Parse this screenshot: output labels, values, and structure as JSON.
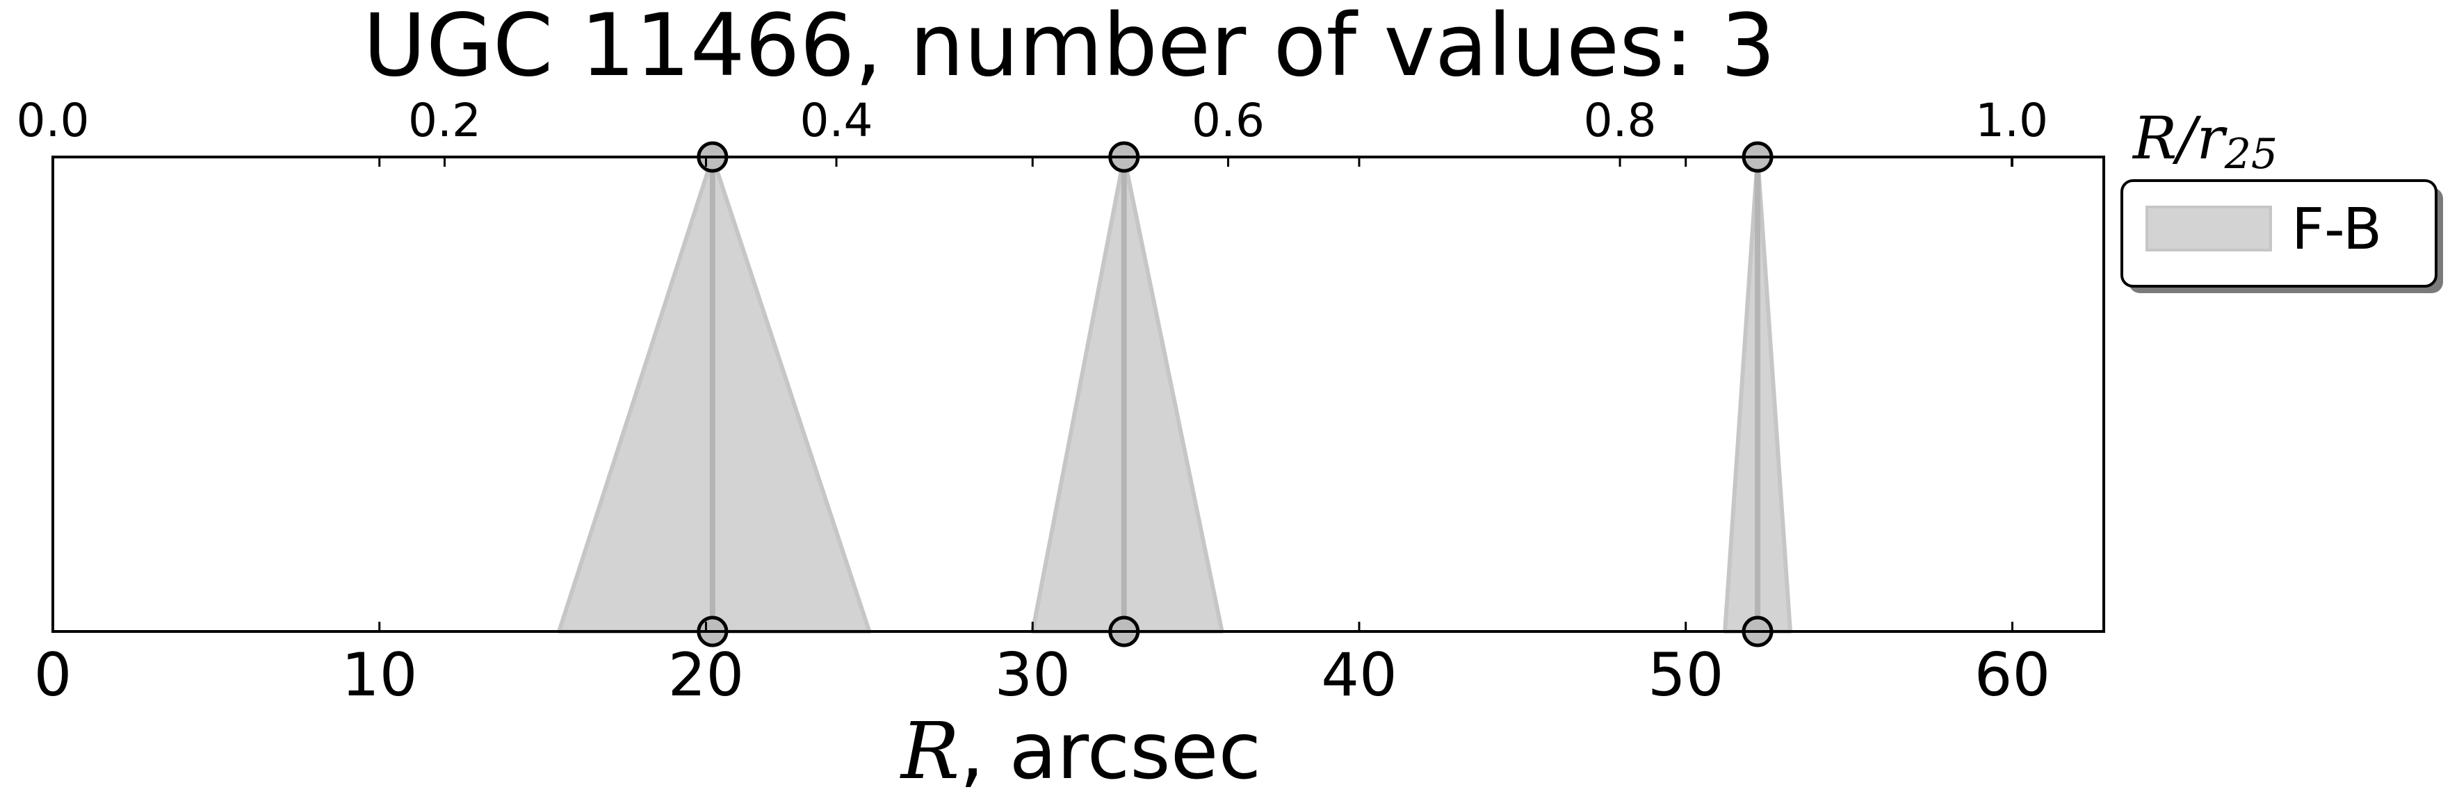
{
  "chart_data": {
    "type": "area",
    "title": "UGC 11466, number of values: 3",
    "xlabel_var": "R",
    "xlabel_unit": ", arcsec",
    "top_xlabel_var": "R/r",
    "top_xlabel_sub": "25",
    "xlim": [
      0,
      62.8
    ],
    "top_xlim": [
      0,
      1.047
    ],
    "bottom_ticks": [
      "0",
      "10",
      "20",
      "30",
      "40",
      "50",
      "60"
    ],
    "bottom_tick_values": [
      0,
      10,
      20,
      30,
      40,
      50,
      60
    ],
    "top_ticks": [
      "0.0",
      "0.2",
      "0.4",
      "0.6",
      "0.8",
      "1.0"
    ],
    "top_tick_values": [
      0.0,
      0.2,
      0.4,
      0.6,
      0.8,
      1.0
    ],
    "series": [
      {
        "name": "F-B",
        "color": "#d3d3d3",
        "edge_color": "#c6c6c6",
        "line_color": "#b4b4b4",
        "points": [
          {
            "x": 20.2,
            "xmin": 15.5,
            "xmax": 25.0
          },
          {
            "x": 32.8,
            "xmin": 30.0,
            "xmax": 35.8
          },
          {
            "x": 52.2,
            "xmin": 51.2,
            "xmax": 53.2
          }
        ]
      }
    ],
    "legend": {
      "position": "outside-right-top",
      "entries": [
        "F-B"
      ]
    },
    "grid": false
  }
}
